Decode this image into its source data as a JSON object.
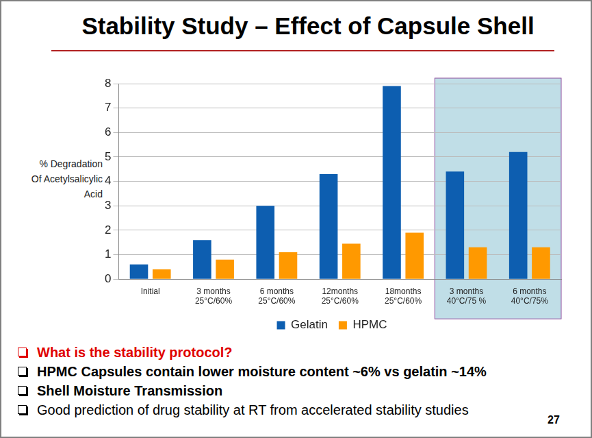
{
  "chart_data": {
    "type": "bar",
    "title": "Stability Study – Effect of Capsule Shell",
    "y_label": [
      "% Degradation",
      "Of Acetylsalicylic",
      "Acid"
    ],
    "categories": [
      [
        "Initial"
      ],
      [
        "3 months",
        "25°C/60%"
      ],
      [
        "6 months",
        "25°C/60%"
      ],
      [
        "12months",
        "25°C/60%"
      ],
      [
        "18months",
        "25°C/60%"
      ],
      [
        "3 months",
        "40°C/75 %"
      ],
      [
        "6 months",
        "40°C/75%"
      ]
    ],
    "series": [
      {
        "name": "Gelatin",
        "color": "#0d5eb0",
        "values": [
          0.6,
          1.6,
          3.0,
          4.3,
          7.9,
          4.4,
          5.2
        ]
      },
      {
        "name": "HPMC",
        "color": "#ff9900",
        "values": [
          0.4,
          0.8,
          1.1,
          1.45,
          1.9,
          1.3,
          1.3
        ]
      }
    ],
    "shaded": [
      false,
      false,
      false,
      false,
      false,
      true,
      true
    ],
    "ylim": [
      0,
      8
    ],
    "yticks": [
      0,
      1,
      2,
      3,
      4,
      5,
      6,
      7,
      8
    ],
    "grid": true,
    "legend": "bottom"
  },
  "slide": {
    "bullets": [
      "What is the stability protocol?",
      "HPMC Capsules contain lower moisture content ~6% vs gelatin ~14%",
      "Shell Moisture Transmission",
      "Good prediction of drug stability at RT from accelerated stability studies"
    ],
    "page_number": "27"
  }
}
